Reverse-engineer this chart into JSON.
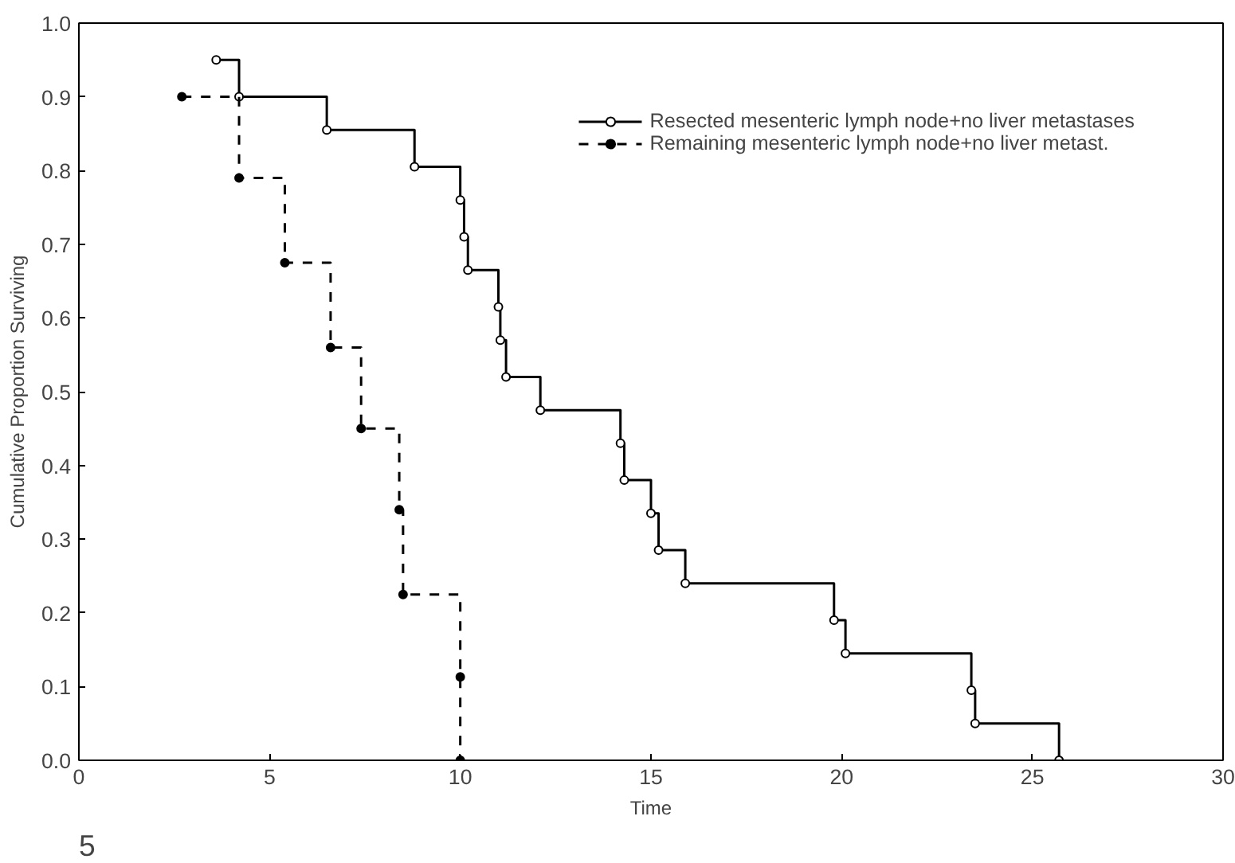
{
  "chart_data": {
    "type": "step",
    "xlabel": "Time",
    "ylabel": "Cumulative Proportion Surviving",
    "series": [
      {
        "name": "Resected mesenteric lymph node+no liver metastases",
        "color": "#000000",
        "line_style": "solid",
        "x": [
          3.6,
          4.2,
          6.5,
          8.8,
          10.0,
          10.1,
          10.2,
          11.0,
          11.05,
          11.2,
          12.1,
          14.2,
          14.3,
          15.0,
          15.2,
          15.9,
          19.8,
          20.1,
          23.4,
          23.5,
          25.7
        ],
        "values": [
          0.95,
          0.9,
          0.855,
          0.805,
          0.76,
          0.71,
          0.665,
          0.615,
          0.57,
          0.52,
          0.475,
          0.43,
          0.38,
          0.335,
          0.285,
          0.24,
          0.19,
          0.145,
          0.095,
          0.05,
          0.0
        ]
      },
      {
        "name": "Remaining mesenteric lymph node+no liver metast.",
        "color": "#000000",
        "line_style": "dashed",
        "x": [
          2.7,
          4.2,
          5.4,
          6.6,
          7.4,
          8.4,
          8.5,
          10.0,
          10.0
        ],
        "values": [
          0.9,
          0.79,
          0.675,
          0.56,
          0.45,
          0.34,
          0.225,
          0.113,
          0.0
        ]
      }
    ],
    "marker": "circle",
    "legend": "top right",
    "grid": false,
    "xlim": [
      0,
      30
    ],
    "xticks": [
      0,
      5,
      10,
      15,
      20,
      25,
      30
    ],
    "ylim": [
      0,
      1
    ],
    "yticks": [
      {
        "value": 0,
        "label": "0.0"
      },
      {
        "value": 0.1,
        "label": "0.1"
      },
      {
        "value": 0.2,
        "label": "0.2"
      },
      {
        "value": 0.3,
        "label": "0.3"
      },
      {
        "value": 0.4,
        "label": "0.4"
      },
      {
        "value": 0.5,
        "label": "0.5"
      },
      {
        "value": 0.6,
        "label": "0.6"
      },
      {
        "value": 0.7,
        "label": "0.7"
      },
      {
        "value": 0.8,
        "label": "0.8"
      },
      {
        "value": 0.9,
        "label": "0.9"
      },
      {
        "value": 1.0,
        "label": "1.0"
      }
    ],
    "annotations": [
      "5"
    ]
  }
}
